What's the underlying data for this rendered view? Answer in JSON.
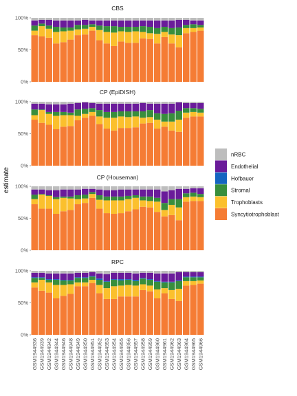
{
  "chart_data": {
    "type": "bar",
    "stacked": true,
    "ylabel": "estimate",
    "xlabel": "",
    "ylim": [
      0,
      1
    ],
    "y_ticks": [
      "0%",
      "50%",
      "100%"
    ],
    "categories": [
      "GSM1944936",
      "GSM1944939",
      "GSM1944942",
      "GSM1944944",
      "GSM1944946",
      "GSM1944948",
      "GSM1944949",
      "GSM1944950",
      "GSM1944951",
      "GSM1944952",
      "GSM1944953",
      "GSM1944954",
      "GSM1944955",
      "GSM1944956",
      "GSM1944957",
      "GSM1944958",
      "GSM1944959",
      "GSM1944960",
      "GSM1944961",
      "GSM1944962",
      "GSM1944963",
      "GSM1944964",
      "GSM1944965",
      "GSM1944966"
    ],
    "legend": {
      "position": "right",
      "entries": [
        {
          "name": "nRBC",
          "color": "#BDBDBD"
        },
        {
          "name": "Endothelial",
          "color": "#6A1B9A"
        },
        {
          "name": "Hofbauer",
          "color": "#1565C0"
        },
        {
          "name": "Stromal",
          "color": "#388E3C"
        },
        {
          "name": "Trophoblasts",
          "color": "#FBC02D"
        },
        {
          "name": "Syncytiotrophoblast",
          "color": "#F57C34"
        }
      ]
    },
    "stack_order": [
      "Syncytiotrophoblast",
      "Trophoblasts",
      "Stromal",
      "Hofbauer",
      "Endothelial",
      "nRBC"
    ],
    "panels": [
      {
        "title": "CBS",
        "series": [
          {
            "name": "Syncytiotrophoblast",
            "values": [
              0.73,
              0.71,
              0.69,
              0.6,
              0.62,
              0.66,
              0.73,
              0.74,
              0.8,
              0.65,
              0.6,
              0.56,
              0.63,
              0.61,
              0.61,
              0.68,
              0.67,
              0.6,
              0.7,
              0.6,
              0.54,
              0.76,
              0.78,
              0.8
            ]
          },
          {
            "name": "Trophoblasts",
            "values": [
              0.07,
              0.16,
              0.14,
              0.18,
              0.17,
              0.14,
              0.09,
              0.09,
              0.06,
              0.16,
              0.18,
              0.21,
              0.16,
              0.17,
              0.18,
              0.1,
              0.09,
              0.15,
              0.08,
              0.14,
              0.19,
              0.08,
              0.06,
              0.05
            ]
          },
          {
            "name": "Stromal",
            "values": [
              0.08,
              0.04,
              0.05,
              0.08,
              0.06,
              0.05,
              0.07,
              0.06,
              0.04,
              0.07,
              0.09,
              0.1,
              0.07,
              0.08,
              0.07,
              0.09,
              0.1,
              0.09,
              0.08,
              0.1,
              0.12,
              0.05,
              0.06,
              0.04
            ]
          },
          {
            "name": "Hofbauer",
            "values": [
              0.0,
              0.0,
              0.0,
              0.0,
              0.0,
              0.0,
              0.0,
              0.0,
              0.0,
              0.0,
              0.0,
              0.0,
              0.0,
              0.0,
              0.0,
              0.0,
              0.0,
              0.0,
              0.0,
              0.0,
              0.0,
              0.0,
              0.0,
              0.0
            ]
          },
          {
            "name": "Endothelial",
            "values": [
              0.08,
              0.06,
              0.09,
              0.1,
              0.11,
              0.11,
              0.07,
              0.08,
              0.06,
              0.08,
              0.09,
              0.09,
              0.1,
              0.1,
              0.1,
              0.09,
              0.1,
              0.12,
              0.1,
              0.12,
              0.12,
              0.08,
              0.06,
              0.07
            ]
          },
          {
            "name": "nRBC",
            "values": [
              0.04,
              0.03,
              0.03,
              0.04,
              0.04,
              0.04,
              0.04,
              0.03,
              0.04,
              0.04,
              0.04,
              0.04,
              0.04,
              0.04,
              0.04,
              0.04,
              0.04,
              0.04,
              0.04,
              0.04,
              0.03,
              0.03,
              0.04,
              0.04
            ]
          }
        ]
      },
      {
        "title": "CP (EpiDISH)",
        "series": [
          {
            "name": "Syncytiotrophoblast",
            "values": [
              0.72,
              0.67,
              0.64,
              0.57,
              0.61,
              0.62,
              0.71,
              0.75,
              0.78,
              0.65,
              0.58,
              0.55,
              0.59,
              0.59,
              0.6,
              0.66,
              0.67,
              0.58,
              0.61,
              0.55,
              0.53,
              0.75,
              0.77,
              0.77
            ]
          },
          {
            "name": "Trophoblasts",
            "values": [
              0.07,
              0.2,
              0.17,
              0.21,
              0.18,
              0.17,
              0.07,
              0.06,
              0.06,
              0.12,
              0.17,
              0.2,
              0.18,
              0.17,
              0.17,
              0.09,
              0.09,
              0.14,
              0.08,
              0.14,
              0.19,
              0.08,
              0.07,
              0.06
            ]
          },
          {
            "name": "Stromal",
            "values": [
              0.09,
              0.01,
              0.03,
              0.06,
              0.05,
              0.04,
              0.1,
              0.08,
              0.06,
              0.1,
              0.09,
              0.09,
              0.08,
              0.09,
              0.08,
              0.1,
              0.11,
              0.1,
              0.12,
              0.13,
              0.14,
              0.07,
              0.06,
              0.06
            ]
          },
          {
            "name": "Hofbauer",
            "values": [
              0.0,
              0.0,
              0.0,
              0.0,
              0.0,
              0.0,
              0.0,
              0.0,
              0.0,
              0.0,
              0.0,
              0.0,
              0.0,
              0.0,
              0.0,
              0.0,
              0.0,
              0.0,
              0.0,
              0.0,
              0.0,
              0.0,
              0.0,
              0.0
            ]
          },
          {
            "name": "Endothelial",
            "values": [
              0.09,
              0.09,
              0.12,
              0.12,
              0.12,
              0.14,
              0.1,
              0.1,
              0.08,
              0.1,
              0.13,
              0.13,
              0.12,
              0.12,
              0.12,
              0.13,
              0.1,
              0.15,
              0.16,
              0.15,
              0.13,
              0.08,
              0.08,
              0.09
            ]
          },
          {
            "name": "nRBC",
            "values": [
              0.03,
              0.03,
              0.04,
              0.04,
              0.04,
              0.03,
              0.02,
              0.01,
              0.02,
              0.03,
              0.03,
              0.03,
              0.03,
              0.03,
              0.03,
              0.02,
              0.03,
              0.03,
              0.03,
              0.03,
              0.01,
              0.02,
              0.02,
              0.02
            ]
          }
        ]
      },
      {
        "title": "CP (Houseman)",
        "series": [
          {
            "name": "Syncytiotrophoblast",
            "values": [
              0.72,
              0.65,
              0.65,
              0.57,
              0.61,
              0.63,
              0.72,
              0.74,
              0.82,
              0.65,
              0.58,
              0.57,
              0.58,
              0.61,
              0.64,
              0.68,
              0.67,
              0.6,
              0.53,
              0.55,
              0.47,
              0.76,
              0.77,
              0.77
            ]
          },
          {
            "name": "Trophoblasts",
            "values": [
              0.08,
              0.22,
              0.2,
              0.23,
              0.21,
              0.18,
              0.08,
              0.07,
              0.06,
              0.14,
              0.2,
              0.21,
              0.2,
              0.19,
              0.18,
              0.1,
              0.1,
              0.16,
              0.1,
              0.16,
              0.2,
              0.07,
              0.07,
              0.06
            ]
          },
          {
            "name": "Stromal",
            "values": [
              0.07,
              0.01,
              0.01,
              0.03,
              0.02,
              0.03,
              0.06,
              0.06,
              0.03,
              0.07,
              0.06,
              0.06,
              0.06,
              0.05,
              0.04,
              0.06,
              0.07,
              0.06,
              0.11,
              0.09,
              0.13,
              0.06,
              0.06,
              0.05
            ]
          },
          {
            "name": "Hofbauer",
            "values": [
              0.0,
              0.0,
              0.0,
              0.0,
              0.0,
              0.0,
              0.0,
              0.0,
              0.0,
              0.0,
              0.0,
              0.0,
              0.0,
              0.0,
              0.0,
              0.0,
              0.0,
              0.0,
              0.0,
              0.0,
              0.0,
              0.0,
              0.0,
              0.0
            ]
          },
          {
            "name": "Endothelial",
            "values": [
              0.08,
              0.07,
              0.08,
              0.11,
              0.11,
              0.11,
              0.09,
              0.09,
              0.05,
              0.09,
              0.1,
              0.1,
              0.11,
              0.1,
              0.09,
              0.11,
              0.11,
              0.13,
              0.18,
              0.14,
              0.16,
              0.07,
              0.07,
              0.09
            ]
          },
          {
            "name": "nRBC",
            "values": [
              0.05,
              0.05,
              0.06,
              0.06,
              0.05,
              0.05,
              0.05,
              0.04,
              0.04,
              0.05,
              0.06,
              0.06,
              0.05,
              0.05,
              0.05,
              0.05,
              0.05,
              0.05,
              0.08,
              0.06,
              0.04,
              0.04,
              0.03,
              0.03
            ]
          }
        ]
      },
      {
        "title": "RPC",
        "series": [
          {
            "name": "Syncytiotrophoblast",
            "values": [
              0.74,
              0.69,
              0.66,
              0.57,
              0.61,
              0.64,
              0.76,
              0.76,
              0.81,
              0.65,
              0.56,
              0.56,
              0.6,
              0.6,
              0.6,
              0.7,
              0.68,
              0.57,
              0.65,
              0.56,
              0.53,
              0.77,
              0.78,
              0.8
            ]
          },
          {
            "name": "Trophoblasts",
            "values": [
              0.08,
              0.17,
              0.16,
              0.21,
              0.17,
              0.15,
              0.06,
              0.06,
              0.05,
              0.13,
              0.17,
              0.2,
              0.17,
              0.18,
              0.17,
              0.09,
              0.09,
              0.14,
              0.08,
              0.14,
              0.19,
              0.07,
              0.06,
              0.05
            ]
          },
          {
            "name": "Stromal",
            "values": [
              0.07,
              0.03,
              0.04,
              0.08,
              0.07,
              0.06,
              0.07,
              0.07,
              0.05,
              0.08,
              0.1,
              0.1,
              0.08,
              0.08,
              0.07,
              0.09,
              0.09,
              0.12,
              0.09,
              0.12,
              0.12,
              0.06,
              0.06,
              0.05
            ]
          },
          {
            "name": "Hofbauer",
            "values": [
              0.01,
              0.01,
              0.01,
              0.01,
              0.01,
              0.01,
              0.01,
              0.01,
              0.01,
              0.02,
              0.01,
              0.01,
              0.02,
              0.01,
              0.02,
              0.01,
              0.01,
              0.01,
              0.01,
              0.01,
              0.01,
              0.01,
              0.01,
              0.01
            ]
          },
          {
            "name": "Endothelial",
            "values": [
              0.07,
              0.07,
              0.09,
              0.09,
              0.1,
              0.1,
              0.07,
              0.07,
              0.06,
              0.08,
              0.11,
              0.1,
              0.1,
              0.1,
              0.1,
              0.08,
              0.1,
              0.12,
              0.13,
              0.13,
              0.13,
              0.07,
              0.07,
              0.07
            ]
          },
          {
            "name": "nRBC",
            "values": [
              0.03,
              0.03,
              0.04,
              0.04,
              0.04,
              0.04,
              0.03,
              0.03,
              0.02,
              0.04,
              0.05,
              0.03,
              0.03,
              0.03,
              0.04,
              0.03,
              0.03,
              0.04,
              0.04,
              0.04,
              0.02,
              0.02,
              0.02,
              0.02
            ]
          }
        ]
      }
    ]
  }
}
